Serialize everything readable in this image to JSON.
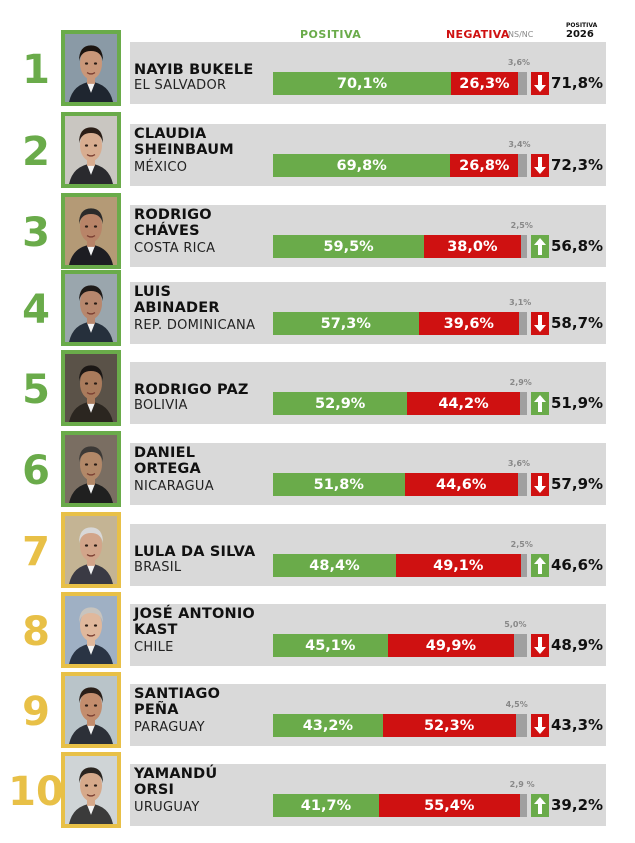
{
  "header": {
    "positive_label": "POSITIVA",
    "negative_label": "NEGATIVA",
    "ns_label": "NS/NC",
    "year_top": "POSITIVA",
    "year": "2026"
  },
  "colors": {
    "positive": "#6aab4a",
    "negative": "#cf1111",
    "nsnc": "#a0a0a0",
    "gold": "#e8c047",
    "row_bg": "#d9d9d9"
  },
  "chart_data": {
    "type": "bar",
    "stacked": true,
    "orientation": "horizontal",
    "categories": [
      "NAYIB BUKELE",
      "CLAUDIA SHEINBAUM",
      "RODRIGO CHÁVES",
      "LUIS ABINADER",
      "RODRIGO PAZ",
      "DANIEL ORTEGA",
      "LULA DA SILVA",
      "JOSÉ ANTONIO KAST",
      "SANTIAGO PEÑA",
      "YAMANDÚ ORSI"
    ],
    "series": [
      {
        "name": "POSITIVA",
        "values": [
          70.1,
          69.8,
          59.5,
          57.3,
          52.9,
          51.8,
          48.4,
          45.1,
          43.2,
          41.7
        ]
      },
      {
        "name": "NEGATIVA",
        "values": [
          26.3,
          26.8,
          38.0,
          39.6,
          44.2,
          44.6,
          49.1,
          49.9,
          52.3,
          55.4
        ]
      },
      {
        "name": "NS/NC",
        "values": [
          3.6,
          3.4,
          2.5,
          3.1,
          2.9,
          3.6,
          2.5,
          5.0,
          4.5,
          2.9
        ]
      }
    ],
    "leaders": [
      {
        "rank": "1",
        "name": [
          "NAYIB BUKELE"
        ],
        "country": "EL SALVADOR",
        "pos": 70.1,
        "neg": 26.3,
        "ns": 3.6,
        "pos_label": "70,1%",
        "neg_label": "26,3%",
        "ns_label": "3,6%",
        "trend": "down",
        "trend_label": "71,8%",
        "frame": "green"
      },
      {
        "rank": "2",
        "name": [
          "CLAUDIA",
          "SHEINBAUM"
        ],
        "country": "MÉXICO",
        "pos": 69.8,
        "neg": 26.8,
        "ns": 3.4,
        "pos_label": "69,8%",
        "neg_label": "26,8%",
        "ns_label": "3,4%",
        "trend": "down",
        "trend_label": "72,3%",
        "frame": "green"
      },
      {
        "rank": "3",
        "name": [
          "RODRIGO",
          "CHÁVES"
        ],
        "country": "COSTA RICA",
        "pos": 59.5,
        "neg": 38.0,
        "ns": 2.5,
        "pos_label": "59,5%",
        "neg_label": "38,0%",
        "ns_label": "2,5%",
        "trend": "up",
        "trend_label": "56,8%",
        "frame": "green"
      },
      {
        "rank": "4",
        "name": [
          "LUIS",
          "ABINADER"
        ],
        "country": "REP. DOMINICANA",
        "pos": 57.3,
        "neg": 39.6,
        "ns": 3.1,
        "pos_label": "57,3%",
        "neg_label": "39,6%",
        "ns_label": "3,1%",
        "trend": "down",
        "trend_label": "58,7%",
        "frame": "green"
      },
      {
        "rank": "5",
        "name": [
          "RODRIGO PAZ"
        ],
        "country": "BOLIVIA",
        "pos": 52.9,
        "neg": 44.2,
        "ns": 2.9,
        "pos_label": "52,9%",
        "neg_label": "44,2%",
        "ns_label": "2,9%",
        "trend": "up",
        "trend_label": "51,9%",
        "frame": "green"
      },
      {
        "rank": "6",
        "name": [
          "DANIEL",
          "ORTEGA"
        ],
        "country": "NICARAGUA",
        "pos": 51.8,
        "neg": 44.6,
        "ns": 3.6,
        "pos_label": "51,8%",
        "neg_label": "44,6%",
        "ns_label": "3,6%",
        "trend": "down",
        "trend_label": "57,9%",
        "frame": "green"
      },
      {
        "rank": "7",
        "name": [
          "LULA DA SILVA"
        ],
        "country": "BRASIL",
        "pos": 48.4,
        "neg": 49.1,
        "ns": 2.5,
        "pos_label": "48,4%",
        "neg_label": "49,1%",
        "ns_label": "2,5%",
        "trend": "up",
        "trend_label": "46,6%",
        "frame": "gold"
      },
      {
        "rank": "8",
        "name": [
          "JOSÉ ANTONIO",
          "KAST"
        ],
        "country": "CHILE",
        "pos": 45.1,
        "neg": 49.9,
        "ns": 5.0,
        "pos_label": "45,1%",
        "neg_label": "49,9%",
        "ns_label": "5,0%",
        "trend": "down",
        "trend_label": "48,9%",
        "frame": "gold"
      },
      {
        "rank": "9",
        "name": [
          "SANTIAGO",
          "PEÑA"
        ],
        "country": "PARAGUAY",
        "pos": 43.2,
        "neg": 52.3,
        "ns": 4.5,
        "pos_label": "43,2%",
        "neg_label": "52,3%",
        "ns_label": "4,5%",
        "trend": "down",
        "trend_label": "43,3%",
        "frame": "gold"
      },
      {
        "rank": "10",
        "name": [
          "YAMANDÚ",
          "ORSI"
        ],
        "country": "URUGUAY",
        "pos": 41.7,
        "neg": 55.4,
        "ns": 2.9,
        "pos_label": "41,7%",
        "neg_label": "55,4%",
        "ns_label": "2,9 %",
        "trend": "up",
        "trend_label": "39,2%",
        "frame": "gold"
      }
    ]
  }
}
